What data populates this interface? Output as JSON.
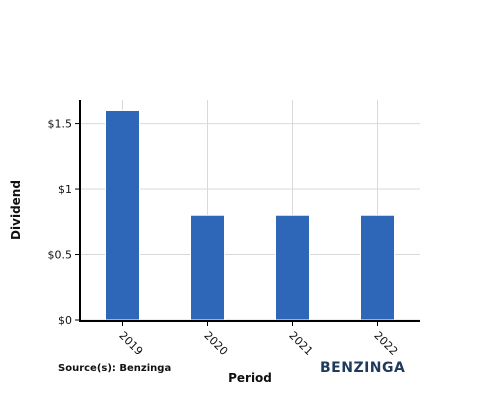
{
  "chart_data": {
    "type": "bar",
    "categories": [
      "2019",
      "2020",
      "2021",
      "2022"
    ],
    "values": [
      1.6,
      0.8,
      0.8,
      0.8
    ],
    "xlabel": "Period",
    "ylabel": "Dividend",
    "ylim": [
      0,
      1.68
    ],
    "yticks": [
      0,
      0.5,
      1,
      1.5
    ],
    "ytick_labels": [
      "$0",
      "$0.5",
      "$1",
      "$1.5"
    ],
    "grid": true,
    "bar_color": "#2f67b8"
  },
  "footer": {
    "source": "Source(s): Benzinga",
    "brand": "BENZINGA",
    "brand_color": "#1f3a5a"
  }
}
